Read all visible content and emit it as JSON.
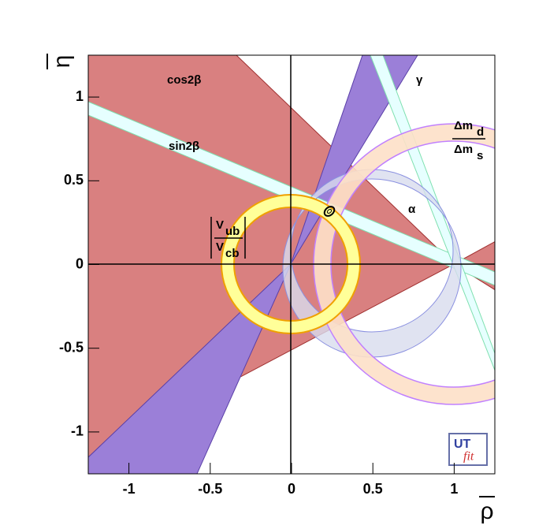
{
  "chart_data": {
    "type": "region",
    "x_label": "ρ",
    "y_label": "η",
    "xlim": [
      -1.25,
      1.25
    ],
    "ylim": [
      -1.25,
      1.25
    ],
    "xticks": [
      -1,
      -0.5,
      0,
      0.5,
      1
    ],
    "yticks": [
      -1,
      -0.5,
      0,
      0.5,
      1
    ],
    "annotations": {
      "cos2b": "cos2β",
      "sin2b": "sin2β",
      "gamma": "γ",
      "alpha": "α",
      "dm_num": "Δm",
      "dm_num_sub": "d",
      "dm_den": "Δm",
      "dm_den_sub": "s",
      "v_num": "V",
      "v_num_sub": "ub",
      "v_den": "V",
      "v_den_sub": "cb"
    },
    "logo": {
      "part1": "UT",
      "part2": "fit"
    }
  }
}
